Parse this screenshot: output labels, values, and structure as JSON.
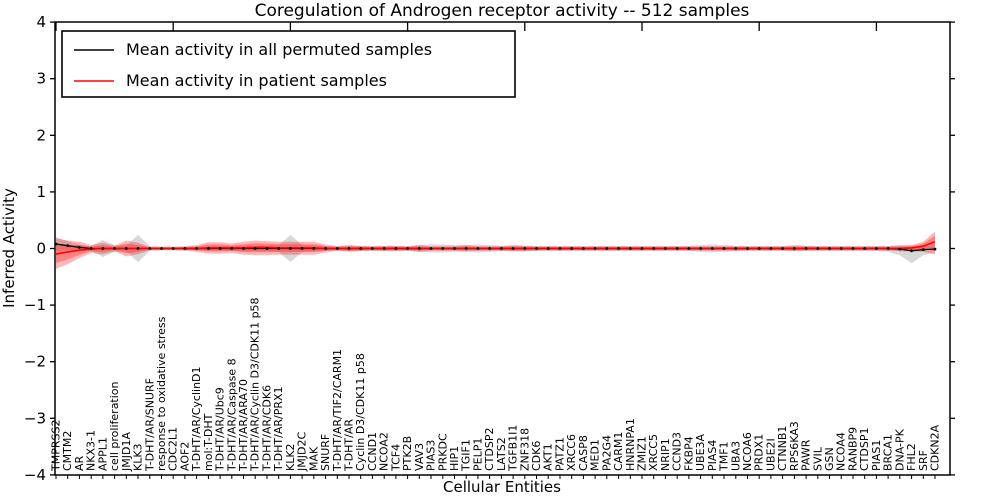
{
  "title": "Coregulation of Androgen receptor activity -- 512 samples",
  "xlabel": "Cellular Entities",
  "ylabel": "Inferred Activity",
  "legend": [
    {
      "label": "Mean activity in all permuted samples",
      "color": "#000000"
    },
    {
      "label": "Mean activity in patient samples",
      "color": "#ff0000"
    }
  ],
  "colors": {
    "permuted_line": "#000000",
    "permuted_band": "#999999",
    "patient_line": "#ff0000",
    "patient_band": "#ff0000",
    "frame": "#000000",
    "background": "#ffffff"
  },
  "chart_data": {
    "type": "line",
    "title": "Coregulation of Androgen receptor activity -- 512 samples",
    "xlabel": "Cellular Entities",
    "ylabel": "Inferred Activity",
    "ylim": [
      -4,
      4
    ],
    "ytick_values": [
      4,
      3,
      2,
      1,
      0,
      -1,
      -2,
      -3,
      -4
    ],
    "ytick_labels": [
      "4",
      "3",
      "2",
      "1",
      "0",
      "−1",
      "−2",
      "−3",
      "−4"
    ],
    "grid": false,
    "legend_position": "upper left",
    "legend": [
      {
        "label": "Mean activity in all permuted samples",
        "color": "#000000"
      },
      {
        "label": "Mean activity in patient samples",
        "color": "#ff0000"
      }
    ],
    "categories": [
      "TMPRSS2",
      "CMTM2",
      "AR",
      "NKX3-1",
      "APPL1",
      "cell proliferation",
      "JMJD1A",
      "KLK3",
      "T-DHT/AR/SNURF",
      "response to oxidative stress",
      "CDC2L1",
      "AOF2",
      "T-DHT/AR/CyclinD1",
      "mol:T-DHT",
      "T-DHT/AR/Ubc9",
      "T-DHT/AR/Caspase 8",
      "T-DHT/AR/ARA70",
      "T-DHT/AR/Cyclin D3/CDK11 p58",
      "T-DHT/AR/CDK6",
      "T-DHT/AR/PRX1",
      "KLK2",
      "JMJD2C",
      "MAK",
      "SNURF",
      "T-DHT/AR/TIF2/CARM1",
      "T-DHT/AR",
      "Cyclin D3/CDK11 p58",
      "CCND1",
      "NCOA2",
      "TCF4",
      "PTK2B",
      "VAV3",
      "PIAS3",
      "PRKDC",
      "HIP1",
      "TGIF1",
      "PELP1",
      "CTDSP2",
      "LATS2",
      "TGFB1I1",
      "ZNF318",
      "CDK6",
      "AKT1",
      "PATZ1",
      "XRCC6",
      "CASP8",
      "MED1",
      "PA2G4",
      "CARM1",
      "HNRNPA1",
      "ZMIZ1",
      "XRCC5",
      "NRIP1",
      "CCND3",
      "FKBP4",
      "UBE3A",
      "PIAS4",
      "TMF1",
      "UBA3",
      "NCOA6",
      "PRDX1",
      "UBE2I",
      "CTNNB1",
      "RPS6KA3",
      "PAWR",
      "SVIL",
      "GSN",
      "NCOA4",
      "RANBP9",
      "CTDSP1",
      "PIAS1",
      "BRCA1",
      "DNA-PK",
      "FHL2",
      "SRF",
      "CDKN2A"
    ],
    "series": [
      {
        "name": "Mean activity in all permuted samples",
        "color": "#000000",
        "mean": [
          0.08,
          0.05,
          0.02,
          0,
          0,
          0,
          0,
          0,
          0,
          0,
          0,
          0,
          0,
          0,
          0,
          0,
          0,
          0,
          0,
          0,
          0,
          0,
          0,
          0,
          0,
          0,
          0,
          0,
          0,
          0,
          0,
          0,
          0,
          0,
          0,
          0,
          0,
          0,
          0,
          0,
          0,
          0,
          0,
          0,
          0,
          0,
          0,
          0,
          0,
          0,
          0,
          0,
          0,
          0,
          0,
          0,
          0,
          0,
          0,
          0,
          0,
          0,
          0,
          0,
          0,
          0,
          0,
          0,
          0,
          0,
          0,
          0,
          -0.01,
          -0.04,
          -0.02,
          -0.01
        ],
        "band_hi": [
          0.2,
          0.13,
          0.07,
          0.04,
          0.15,
          0.06,
          0.05,
          0.24,
          0.04,
          0.03,
          0.03,
          0.03,
          0.03,
          0.04,
          0.04,
          0.04,
          0.05,
          0.05,
          0.05,
          0.06,
          0.24,
          0.06,
          0.05,
          0.04,
          0.04,
          0.05,
          0.04,
          0.04,
          0.04,
          0.04,
          0.04,
          0.06,
          0.07,
          0.07,
          0.06,
          0.06,
          0.07,
          0.06,
          0.05,
          0.05,
          0.05,
          0.04,
          0.04,
          0.04,
          0.04,
          0.04,
          0.04,
          0.04,
          0.04,
          0.04,
          0.04,
          0.04,
          0.04,
          0.04,
          0.04,
          0.06,
          0.07,
          0.06,
          0.05,
          0.04,
          0.04,
          0.04,
          0.04,
          0.04,
          0.04,
          0.04,
          0.04,
          0.04,
          0.04,
          0.04,
          0.04,
          0.05,
          0.06,
          0.05,
          0.04,
          0.04
        ],
        "band_lo": [
          -0.04,
          -0.03,
          -0.03,
          -0.04,
          -0.15,
          -0.06,
          -0.05,
          -0.24,
          -0.04,
          -0.03,
          -0.03,
          -0.03,
          -0.03,
          -0.04,
          -0.04,
          -0.04,
          -0.05,
          -0.05,
          -0.05,
          -0.06,
          -0.24,
          -0.06,
          -0.05,
          -0.04,
          -0.04,
          -0.05,
          -0.04,
          -0.04,
          -0.04,
          -0.04,
          -0.04,
          -0.06,
          -0.07,
          -0.07,
          -0.06,
          -0.06,
          -0.07,
          -0.06,
          -0.05,
          -0.05,
          -0.05,
          -0.04,
          -0.04,
          -0.04,
          -0.04,
          -0.04,
          -0.04,
          -0.04,
          -0.04,
          -0.04,
          -0.04,
          -0.04,
          -0.04,
          -0.04,
          -0.04,
          -0.06,
          -0.07,
          -0.06,
          -0.05,
          -0.04,
          -0.04,
          -0.04,
          -0.04,
          -0.04,
          -0.04,
          -0.04,
          -0.04,
          -0.04,
          -0.04,
          -0.04,
          -0.04,
          -0.06,
          -0.12,
          -0.26,
          -0.12,
          -0.07
        ]
      },
      {
        "name": "Mean activity in patient samples",
        "color": "#ff0000",
        "mean": [
          -0.1,
          -0.06,
          -0.03,
          -0.01,
          0,
          0,
          0,
          0,
          0,
          0,
          0,
          0,
          0,
          0.01,
          0.01,
          0.01,
          0.01,
          0.02,
          0.02,
          0.01,
          0.01,
          0.01,
          0.01,
          0,
          0,
          0,
          0,
          0,
          0,
          0,
          0,
          0,
          0,
          0,
          0,
          0,
          0,
          0,
          0,
          0,
          0,
          0,
          0,
          0,
          0,
          0,
          0,
          0,
          0,
          0,
          0,
          0,
          0,
          0,
          0,
          0,
          0,
          0,
          0,
          0,
          0,
          0,
          0,
          0,
          0,
          0,
          0,
          0,
          0,
          0,
          0,
          0,
          0,
          0.01,
          0.04,
          0.12
        ],
        "band_hi": [
          0.18,
          0.14,
          0.12,
          0.06,
          0.1,
          0.05,
          0.14,
          0.1,
          0.03,
          0.03,
          0.03,
          0.04,
          0.06,
          0.11,
          0.11,
          0.09,
          0.12,
          0.14,
          0.13,
          0.12,
          0.12,
          0.12,
          0.12,
          0.07,
          0.04,
          0.06,
          0.05,
          0.04,
          0.05,
          0.05,
          0.04,
          0.06,
          0.04,
          0.04,
          0.04,
          0.06,
          0.04,
          0.04,
          0.04,
          0.06,
          0.05,
          0.04,
          0.04,
          0.04,
          0.04,
          0.04,
          0.04,
          0.04,
          0.04,
          0.04,
          0.04,
          0.04,
          0.04,
          0.04,
          0.04,
          0.04,
          0.04,
          0.04,
          0.04,
          0.04,
          0.04,
          0.04,
          0.04,
          0.06,
          0.05,
          0.04,
          0.04,
          0.04,
          0.04,
          0.04,
          0.04,
          0.04,
          0.05,
          0.06,
          0.12,
          0.3
        ],
        "band_lo": [
          -0.36,
          -0.28,
          -0.17,
          -0.08,
          -0.1,
          -0.05,
          -0.14,
          -0.1,
          -0.03,
          -0.03,
          -0.03,
          -0.04,
          -0.06,
          -0.09,
          -0.09,
          -0.08,
          -0.11,
          -0.12,
          -0.12,
          -0.11,
          -0.11,
          -0.11,
          -0.11,
          -0.07,
          -0.04,
          -0.06,
          -0.05,
          -0.04,
          -0.05,
          -0.05,
          -0.04,
          -0.06,
          -0.04,
          -0.04,
          -0.04,
          -0.05,
          -0.04,
          -0.04,
          -0.04,
          -0.05,
          -0.05,
          -0.04,
          -0.04,
          -0.04,
          -0.04,
          -0.04,
          -0.04,
          -0.04,
          -0.04,
          -0.04,
          -0.04,
          -0.04,
          -0.04,
          -0.04,
          -0.04,
          -0.04,
          -0.04,
          -0.04,
          -0.04,
          -0.04,
          -0.04,
          -0.04,
          -0.04,
          -0.05,
          -0.04,
          -0.04,
          -0.04,
          -0.04,
          -0.04,
          -0.04,
          -0.04,
          -0.04,
          -0.05,
          -0.05,
          -0.06,
          -0.1
        ]
      }
    ]
  }
}
